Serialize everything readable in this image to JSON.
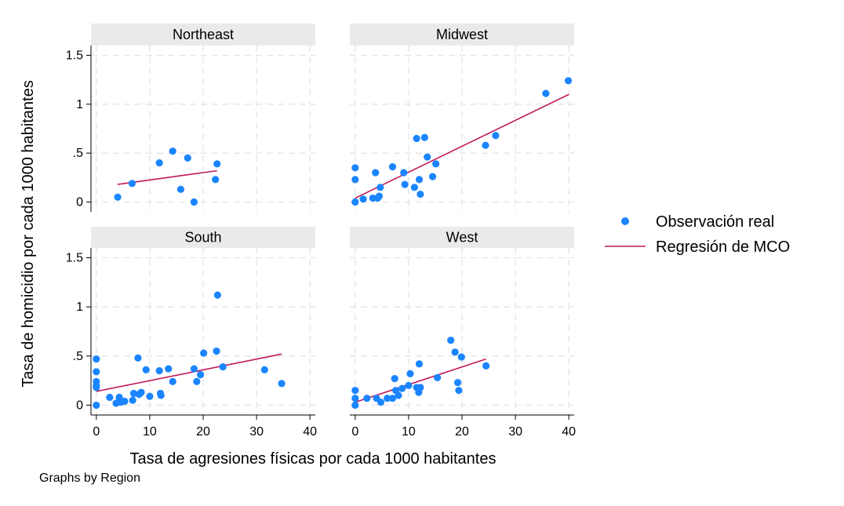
{
  "chart_data": {
    "type": "scatter",
    "xlabel": "Tasa de agresiones físicas por cada 1000 habitantes",
    "ylabel": "Tasa de homicidio por cada 1000 habitantes",
    "note": "Graphs by Region",
    "xlim": [
      -1,
      41
    ],
    "ylim": [
      -0.1,
      1.6
    ],
    "x_ticks": [
      0,
      10,
      20,
      30,
      40
    ],
    "x_tick_labels": [
      "0",
      "10",
      "20",
      "30",
      "40"
    ],
    "y_ticks": [
      0,
      0.5,
      1,
      1.5
    ],
    "y_tick_labels": [
      "0",
      ".5",
      "1",
      "1.5"
    ],
    "grid": true,
    "legend_position": "right",
    "legend": [
      {
        "label": "Observación real",
        "kind": "marker",
        "color": "#1a85ff"
      },
      {
        "label": "Regresión de MCO",
        "kind": "line",
        "color": "#c0185d"
      }
    ],
    "panels": [
      {
        "title": "Northeast",
        "points": [
          [
            4,
            0.05
          ],
          [
            6.7,
            0.19
          ],
          [
            11.8,
            0.4
          ],
          [
            14.3,
            0.52
          ],
          [
            15.8,
            0.13
          ],
          [
            17.1,
            0.45
          ],
          [
            18.3,
            0.0
          ],
          [
            22.3,
            0.23
          ],
          [
            22.6,
            0.39
          ]
        ],
        "fit": [
          [
            4,
            0.18
          ],
          [
            22.6,
            0.32
          ]
        ]
      },
      {
        "title": "Midwest",
        "points": [
          [
            0,
            0.35
          ],
          [
            0,
            0.23
          ],
          [
            0,
            0.0
          ],
          [
            1.5,
            0.03
          ],
          [
            3.3,
            0.04
          ],
          [
            3.8,
            0.3
          ],
          [
            4.2,
            0.04
          ],
          [
            4.5,
            0.06
          ],
          [
            4.7,
            0.15
          ],
          [
            7,
            0.36
          ],
          [
            9.1,
            0.3
          ],
          [
            9.3,
            0.18
          ],
          [
            11.1,
            0.15
          ],
          [
            11.5,
            0.65
          ],
          [
            12,
            0.23
          ],
          [
            12.2,
            0.08
          ],
          [
            13,
            0.66
          ],
          [
            13.5,
            0.46
          ],
          [
            14.5,
            0.26
          ],
          [
            15.1,
            0.39
          ],
          [
            24.4,
            0.58
          ],
          [
            26.3,
            0.68
          ],
          [
            35.7,
            1.11
          ],
          [
            39.9,
            1.24
          ]
        ],
        "fit": [
          [
            0,
            0.04
          ],
          [
            40,
            1.1
          ]
        ]
      },
      {
        "title": "South",
        "points": [
          [
            0,
            0.47
          ],
          [
            0,
            0.34
          ],
          [
            0,
            0.24
          ],
          [
            0,
            0.2
          ],
          [
            0,
            0.18
          ],
          [
            0,
            0.0
          ],
          [
            2.5,
            0.08
          ],
          [
            3.7,
            0.02
          ],
          [
            4.3,
            0.08
          ],
          [
            4.6,
            0.03
          ],
          [
            5.3,
            0.04
          ],
          [
            6.8,
            0.05
          ],
          [
            7,
            0.12
          ],
          [
            7.8,
            0.48
          ],
          [
            8,
            0.11
          ],
          [
            8.4,
            0.13
          ],
          [
            9.3,
            0.36
          ],
          [
            10,
            0.09
          ],
          [
            11.8,
            0.35
          ],
          [
            12,
            0.12
          ],
          [
            12.1,
            0.1
          ],
          [
            13.5,
            0.37
          ],
          [
            14.3,
            0.24
          ],
          [
            18.3,
            0.37
          ],
          [
            18.8,
            0.24
          ],
          [
            19.5,
            0.31
          ],
          [
            20.1,
            0.53
          ],
          [
            22.5,
            0.55
          ],
          [
            22.7,
            1.12
          ],
          [
            23.7,
            0.39
          ],
          [
            31.5,
            0.36
          ],
          [
            34.7,
            0.22
          ]
        ],
        "fit": [
          [
            0,
            0.14
          ],
          [
            34.7,
            0.52
          ]
        ]
      },
      {
        "title": "West",
        "points": [
          [
            0,
            0.15
          ],
          [
            0,
            0.07
          ],
          [
            0,
            0.0
          ],
          [
            2.2,
            0.07
          ],
          [
            4,
            0.07
          ],
          [
            4.8,
            0.03
          ],
          [
            6,
            0.07
          ],
          [
            7,
            0.07
          ],
          [
            7.4,
            0.27
          ],
          [
            7.6,
            0.15
          ],
          [
            8.1,
            0.1
          ],
          [
            8.8,
            0.17
          ],
          [
            10,
            0.2
          ],
          [
            10.3,
            0.32
          ],
          [
            11.5,
            0.18
          ],
          [
            11.9,
            0.13
          ],
          [
            12,
            0.42
          ],
          [
            12.2,
            0.18
          ],
          [
            15.4,
            0.28
          ],
          [
            17.9,
            0.66
          ],
          [
            18.7,
            0.54
          ],
          [
            19.2,
            0.23
          ],
          [
            19.4,
            0.15
          ],
          [
            19.9,
            0.49
          ],
          [
            24.5,
            0.4
          ]
        ],
        "fit": [
          [
            0,
            0.03
          ],
          [
            24.5,
            0.47
          ]
        ]
      }
    ]
  }
}
